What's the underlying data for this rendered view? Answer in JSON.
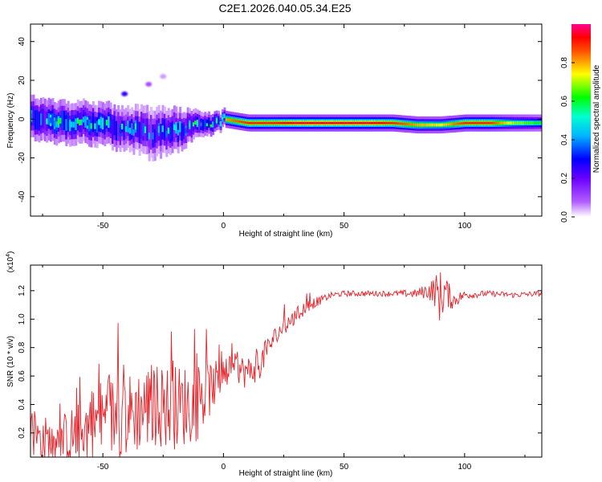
{
  "figure": {
    "title": "C2E1.2026.040.05.34.E25"
  },
  "chart_data": [
    {
      "type": "heatmap",
      "title": "C2E1.2026.040.05.34.E25",
      "xlabel": "Height of straight line (km)",
      "ylabel": "Frequency (Hz)",
      "xlim": [
        -80,
        132
      ],
      "ylim": [
        -50,
        49
      ],
      "xticks": [
        -50,
        0,
        50,
        100
      ],
      "xtick_labels": [
        "-50",
        "0",
        "50",
        "100"
      ],
      "yticks": [
        -40,
        -20,
        0,
        20,
        40
      ],
      "ytick_labels": [
        "-40",
        "-20",
        "0",
        "20",
        "40"
      ],
      "colorbar": {
        "label": "Normalized spectral amplitude",
        "range": [
          0,
          1
        ],
        "ticks": [
          0.0,
          0.2,
          0.4,
          0.6,
          0.8
        ],
        "tick_labels": [
          "0.0",
          "0.2",
          "0.4",
          "0.6",
          "0.8"
        ],
        "colors": [
          "#ffffff",
          "#8b00ff",
          "#0000ff",
          "#00ffff",
          "#00ff00",
          "#ffff00",
          "#ff0000",
          "#ff00b0"
        ]
      },
      "ridge": {
        "description_of_data": "dominant frequency band vs height",
        "x": [
          -80,
          -70,
          -60,
          -50,
          -40,
          -30,
          -20,
          -10,
          0,
          10,
          20,
          30,
          40,
          50,
          60,
          70,
          80,
          90,
          100,
          110,
          120,
          132
        ],
        "center_hz": [
          1,
          -1,
          -2,
          -3,
          -5,
          -7,
          -6,
          -3,
          0,
          -2,
          -2,
          -2,
          -2,
          -2,
          -2,
          -2,
          -3,
          -3,
          -2,
          -2,
          -2,
          -2
        ],
        "halfwidth_hz": [
          5,
          5,
          5,
          5,
          5,
          6,
          5,
          3,
          2,
          2,
          2,
          2,
          2,
          2,
          2,
          2,
          2,
          2,
          2,
          2,
          2,
          2
        ],
        "amplitude": [
          0.55,
          0.6,
          0.55,
          0.55,
          0.5,
          0.45,
          0.5,
          0.55,
          0.8,
          0.9,
          0.9,
          0.95,
          0.95,
          0.95,
          0.95,
          0.9,
          0.8,
          0.75,
          0.9,
          0.9,
          0.7,
          0.6
        ]
      },
      "spots": [
        {
          "x": -41,
          "y": 13,
          "amplitude": 0.25
        },
        {
          "x": -31,
          "y": 18,
          "amplitude": 0.1
        },
        {
          "x": -25,
          "y": 22,
          "amplitude": 0.05
        }
      ]
    },
    {
      "type": "line",
      "title": "",
      "xlabel": "Height of straight line (km)",
      "ylabel": "SNR (10 * v/v)",
      "y_multiplier": "(x10",
      "y_exponent": "4",
      "y_multiplier_close": ")",
      "xlim": [
        -80,
        132
      ],
      "ylim": [
        0.03,
        1.38
      ],
      "xticks": [
        -50,
        0,
        50,
        100
      ],
      "xtick_labels": [
        "-50",
        "0",
        "50",
        "100"
      ],
      "yticks": [
        0.2,
        0.4,
        0.6,
        0.8,
        1.0,
        1.2
      ],
      "ytick_labels": [
        "0.2",
        "0.4",
        "0.6",
        "0.8",
        "1.0",
        "1.2"
      ],
      "series": [
        {
          "name": "SNR",
          "color": "#e8232a",
          "envelope_x": [
            -80,
            -70,
            -60,
            -50,
            -40,
            -30,
            -20,
            -10,
            -5,
            0,
            5,
            10,
            15,
            20,
            25,
            30,
            35,
            40,
            45,
            50,
            60,
            70,
            80,
            85,
            88,
            90,
            92,
            95,
            100,
            110,
            120,
            132
          ],
          "envelope_y": [
            0.18,
            0.12,
            0.2,
            0.3,
            0.32,
            0.4,
            0.38,
            0.42,
            0.52,
            0.6,
            0.66,
            0.62,
            0.68,
            0.84,
            0.95,
            1.02,
            1.1,
            1.13,
            1.17,
            1.18,
            1.18,
            1.18,
            1.18,
            1.2,
            1.2,
            1.15,
            1.2,
            1.13,
            1.17,
            1.18,
            1.17,
            1.18
          ],
          "noise_amplitude": [
            0.18,
            0.18,
            0.22,
            0.3,
            0.3,
            0.3,
            0.3,
            0.28,
            0.18,
            0.12,
            0.1,
            0.12,
            0.1,
            0.08,
            0.07,
            0.06,
            0.05,
            0.03,
            0.02,
            0.02,
            0.02,
            0.02,
            0.03,
            0.06,
            0.12,
            0.2,
            0.12,
            0.06,
            0.03,
            0.02,
            0.02,
            0.02
          ]
        }
      ]
    }
  ]
}
